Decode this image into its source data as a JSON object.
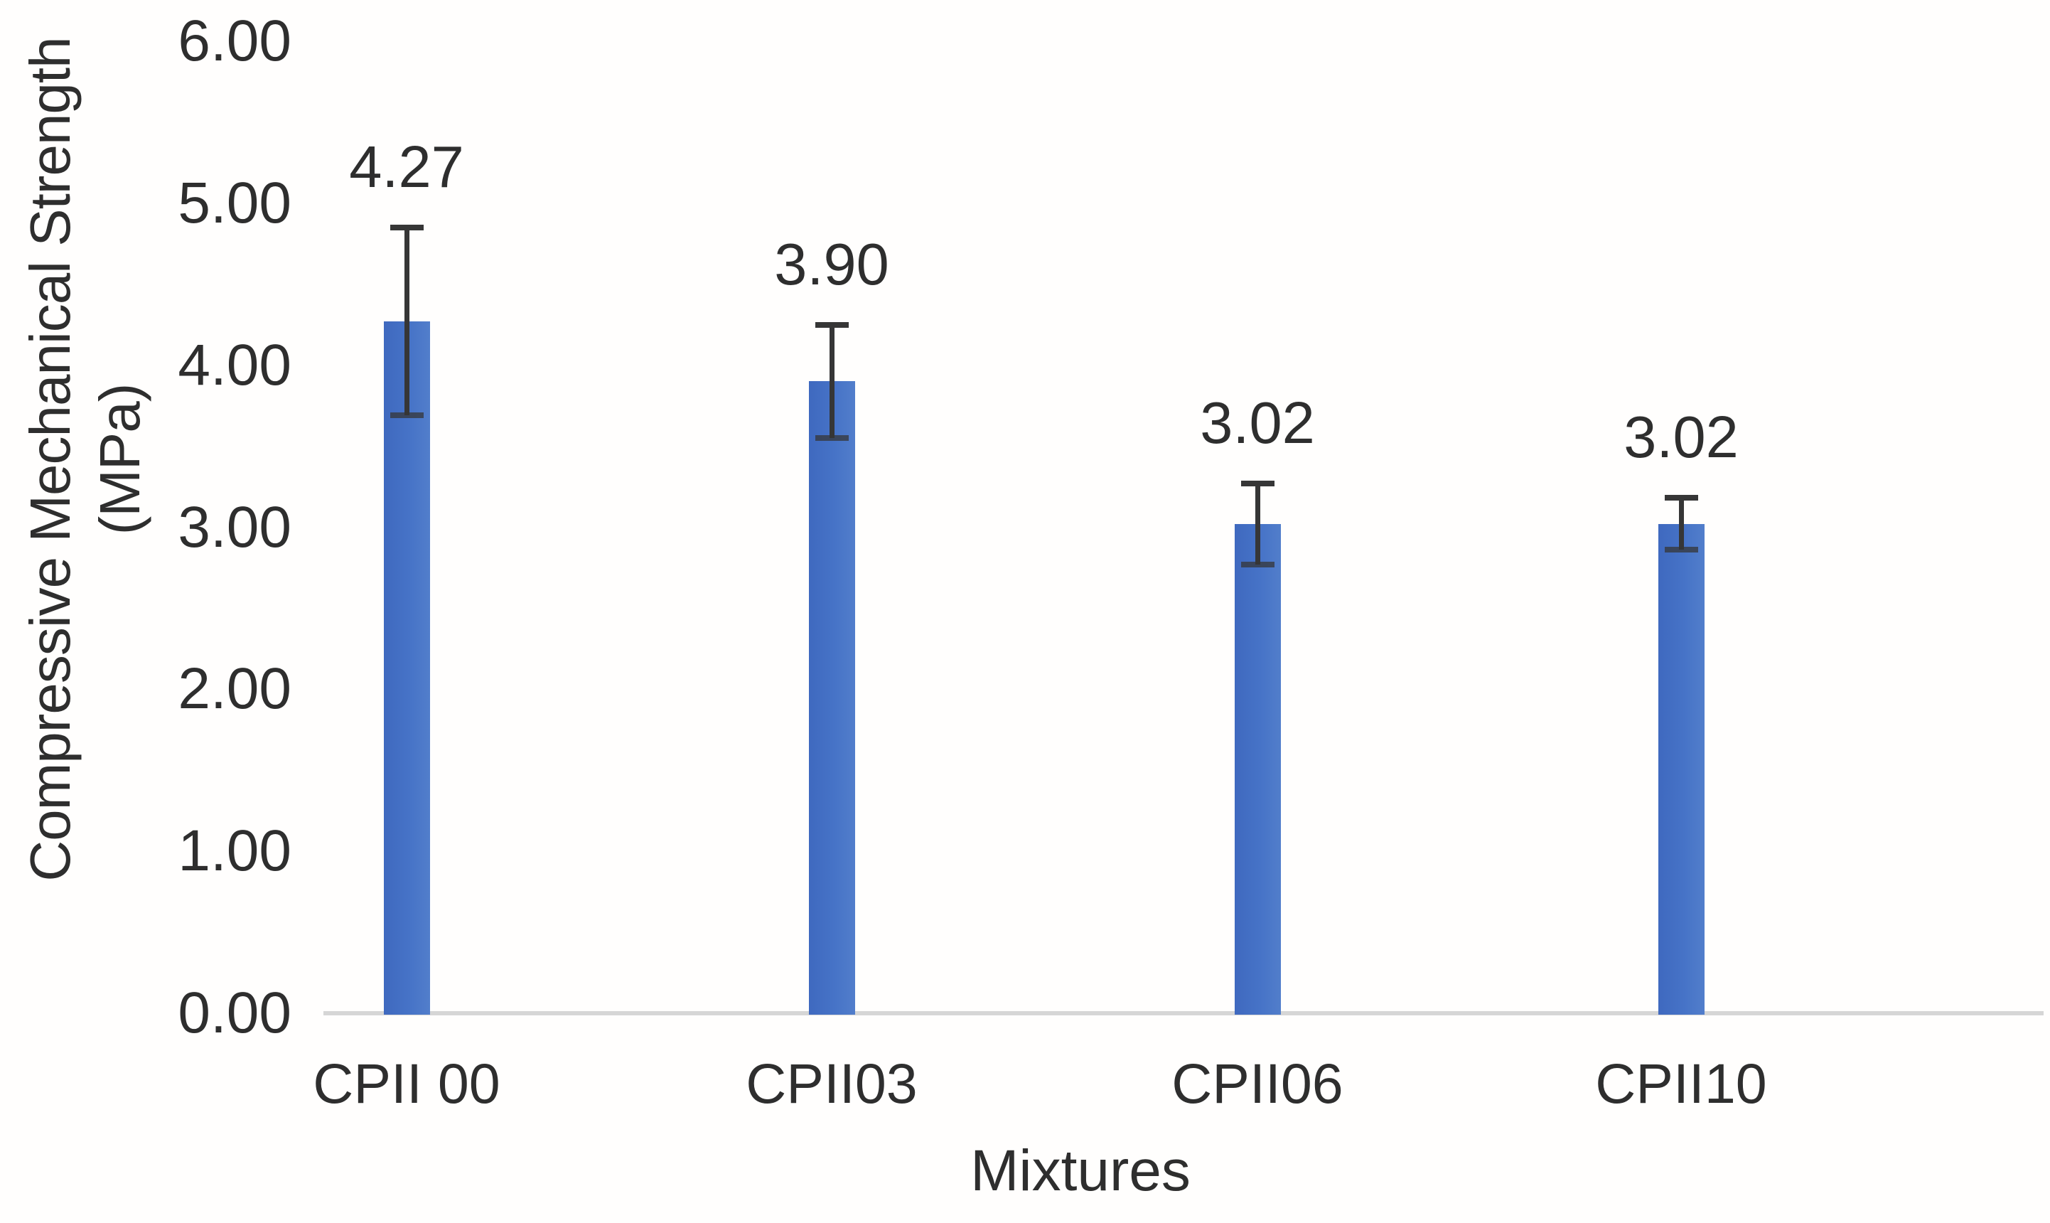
{
  "chart_data": {
    "type": "bar",
    "title": "",
    "xlabel": "Mixtures",
    "ylabel": "Compressive Mechanical Strength (MPa)",
    "ylabel_lines": [
      "Compressive Mechanical Strength",
      "(MPa)"
    ],
    "categories": [
      "CPII 00",
      "CPII03",
      "CPII06",
      "CPII10"
    ],
    "values": [
      4.27,
      3.9,
      3.02,
      3.02
    ],
    "value_labels": [
      "4.27",
      "3.90",
      "3.02",
      "3.02"
    ],
    "errors": [
      0.58,
      0.35,
      0.25,
      0.16
    ],
    "error_bars": "symmetric, caps at both ends, lower whisker partly hidden inside bar",
    "ylim": [
      0,
      6
    ],
    "ytick_step": 1.0,
    "ytick_labels": [
      "0.00",
      "1.00",
      "2.00",
      "3.00",
      "4.00",
      "5.00",
      "6.00"
    ],
    "grid": false,
    "legend": false,
    "colors": {
      "bar": "#4472C4",
      "error_bar": "#363636",
      "axis_line": "#d6d6d6",
      "text": "#2e2e2e",
      "background": "#ffffff"
    }
  }
}
